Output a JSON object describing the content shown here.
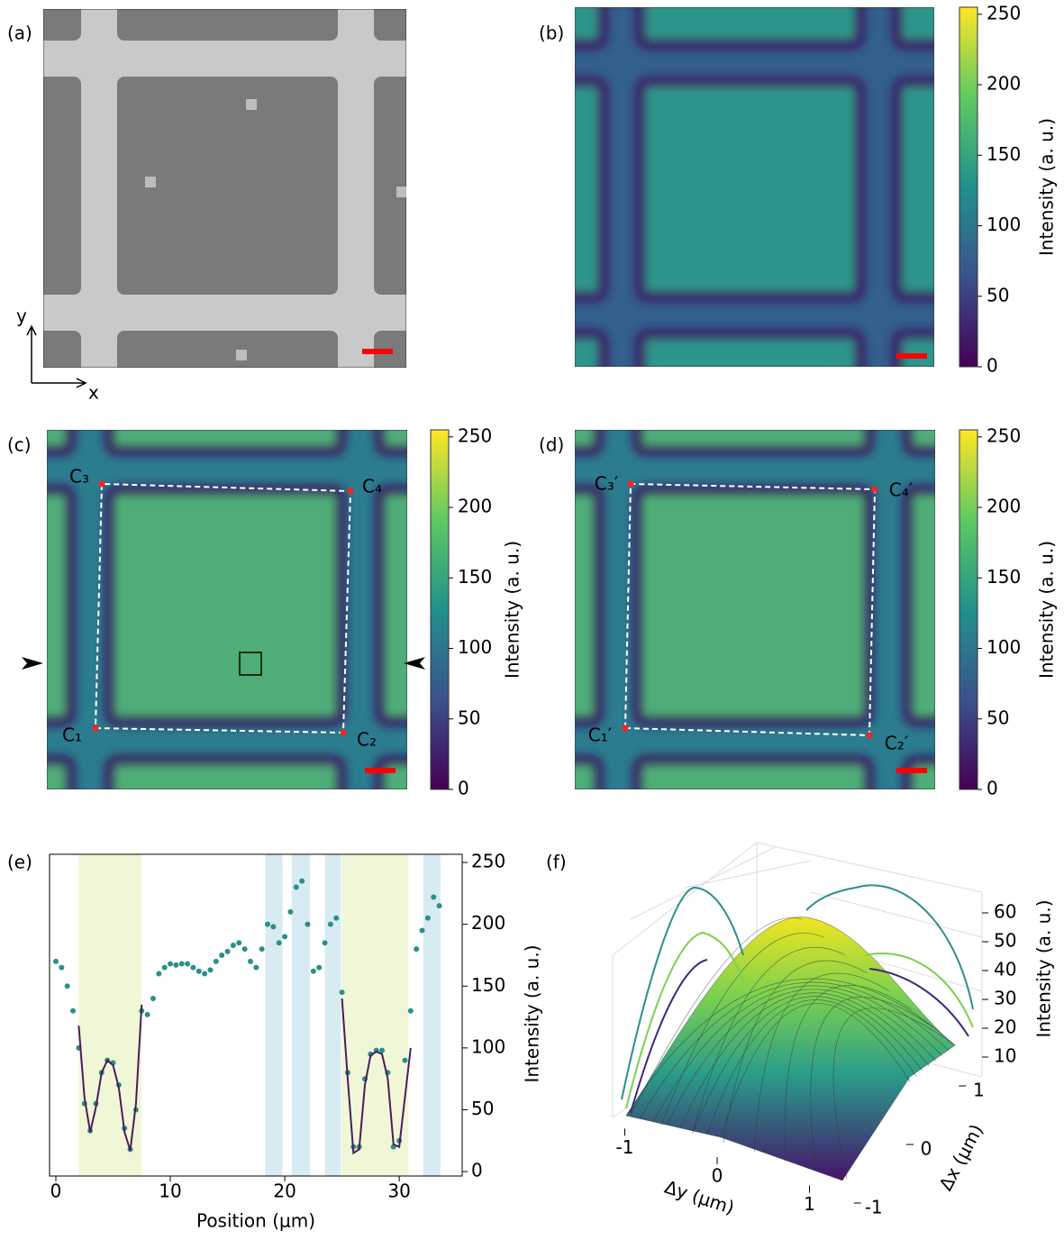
{
  "panel_labels": [
    "(a)",
    "(b)",
    "(c)",
    "(d)",
    "(e)",
    "(f)"
  ],
  "panel_a": {
    "axis_y": "y",
    "axis_x": "x"
  },
  "panel_c": {
    "corners": [
      "C₁",
      "C₂",
      "C₃",
      "C₄"
    ]
  },
  "panel_d": {
    "corners": [
      "C₁′",
      "C₂′",
      "C₃′",
      "C₄′"
    ]
  },
  "colorbars": [
    {
      "label": "Intensity (a. u.)",
      "ylim": [
        0,
        255
      ],
      "yticks": [
        0,
        50,
        100,
        150,
        200,
        250
      ]
    },
    {
      "label": "Intensity (a. u.)",
      "ylim": [
        0,
        255
      ],
      "yticks": [
        0,
        50,
        100,
        150,
        200,
        250
      ]
    },
    {
      "label": "Intensity (a. u.)",
      "ylim": [
        0,
        255
      ],
      "yticks": [
        0,
        50,
        100,
        150,
        200,
        250
      ]
    }
  ],
  "chart_data": [
    {
      "type": "scatter",
      "xlabel": "Position (μm)",
      "ylabel": "Intensity (a. u.)",
      "xlim": [
        -0.55,
        35.5
      ],
      "ylim": [
        -3.6,
        256.6
      ],
      "xticks": [
        0,
        10,
        20,
        30
      ],
      "yticks": [
        0,
        50,
        100,
        150,
        200,
        250
      ],
      "spans": [
        {
          "from": 2,
          "to": 7.5,
          "color": "#f0f7d6"
        },
        {
          "from": 25,
          "to": 30.8,
          "color": "#f0f7d6"
        },
        {
          "from": 18.3,
          "to": 19.8,
          "color": "#d8ebf2"
        },
        {
          "from": 20.6,
          "to": 22.2,
          "color": "#d8ebf2"
        },
        {
          "from": 23.5,
          "to": 24.9,
          "color": "#d8ebf2"
        },
        {
          "from": 32.1,
          "to": 33.6,
          "color": "#d8ebf2"
        }
      ],
      "series": [
        {
          "mode": "markers",
          "color": "#2a9088",
          "x": [
            0,
            0.5,
            1,
            1.5,
            2,
            2.5,
            3,
            3.5,
            4,
            4.5,
            5,
            5.5,
            6,
            6.5,
            7,
            7.5,
            8,
            8.5,
            9,
            9.5,
            10,
            10.5,
            11,
            11.5,
            12,
            12.5,
            13,
            13.5,
            14,
            14.5,
            15,
            15.5,
            16,
            16.5,
            17,
            17.5,
            18,
            18.5,
            19,
            19.5,
            20,
            20.5,
            21,
            21.5,
            22,
            22.5,
            23,
            23.5,
            24,
            24.5,
            25,
            25.5,
            26,
            26.5,
            27,
            27.5,
            28,
            28.5,
            29,
            29.5,
            30,
            30.5,
            31,
            31.5,
            32,
            32.5,
            33,
            33.5
          ],
          "values": [
            170,
            165,
            150,
            130,
            100,
            55,
            33,
            55,
            80,
            90,
            88,
            70,
            35,
            18,
            50,
            130,
            127,
            140,
            160,
            165,
            168,
            167,
            168,
            168,
            165,
            162,
            160,
            163,
            170,
            175,
            178,
            183,
            185,
            180,
            170,
            165,
            180,
            200,
            198,
            185,
            190,
            210,
            230,
            235,
            200,
            162,
            165,
            185,
            200,
            205,
            145,
            80,
            20,
            20,
            75,
            95,
            98,
            98,
            80,
            20,
            25,
            90,
            130,
            180,
            195,
            205,
            222,
            215
          ]
        },
        {
          "mode": "line",
          "color": "#4b1c5c",
          "x": [
            2,
            2.5,
            3,
            3.5,
            4,
            4.5,
            5,
            5.5,
            6,
            6.5,
            7,
            7.5
          ],
          "values": [
            118,
            60,
            32,
            52,
            80,
            90,
            86,
            68,
            32,
            17,
            55,
            135
          ]
        },
        {
          "mode": "line",
          "color": "#4b1c5c",
          "x": [
            25,
            25.5,
            26,
            26.5,
            27,
            27.5,
            28,
            28.5,
            29,
            29.5,
            30,
            30.5,
            31
          ],
          "values": [
            140,
            75,
            15,
            18,
            70,
            94,
            97,
            95,
            75,
            22,
            20,
            60,
            100
          ]
        }
      ]
    },
    {
      "type": "surface3d",
      "xlabel": "Δy (μm)",
      "xlim": [
        -1.2,
        1.2
      ],
      "xticks": [
        -1,
        0,
        1
      ],
      "ylabel": "Δx (μm)",
      "ylim": [
        -1.2,
        1.2
      ],
      "yticks": [
        -1,
        0,
        1
      ],
      "zlabel": "Intensity (a. u.)",
      "zlim": [
        5,
        65
      ],
      "zticks": [
        10,
        20,
        30,
        40,
        50,
        60
      ]
    }
  ]
}
